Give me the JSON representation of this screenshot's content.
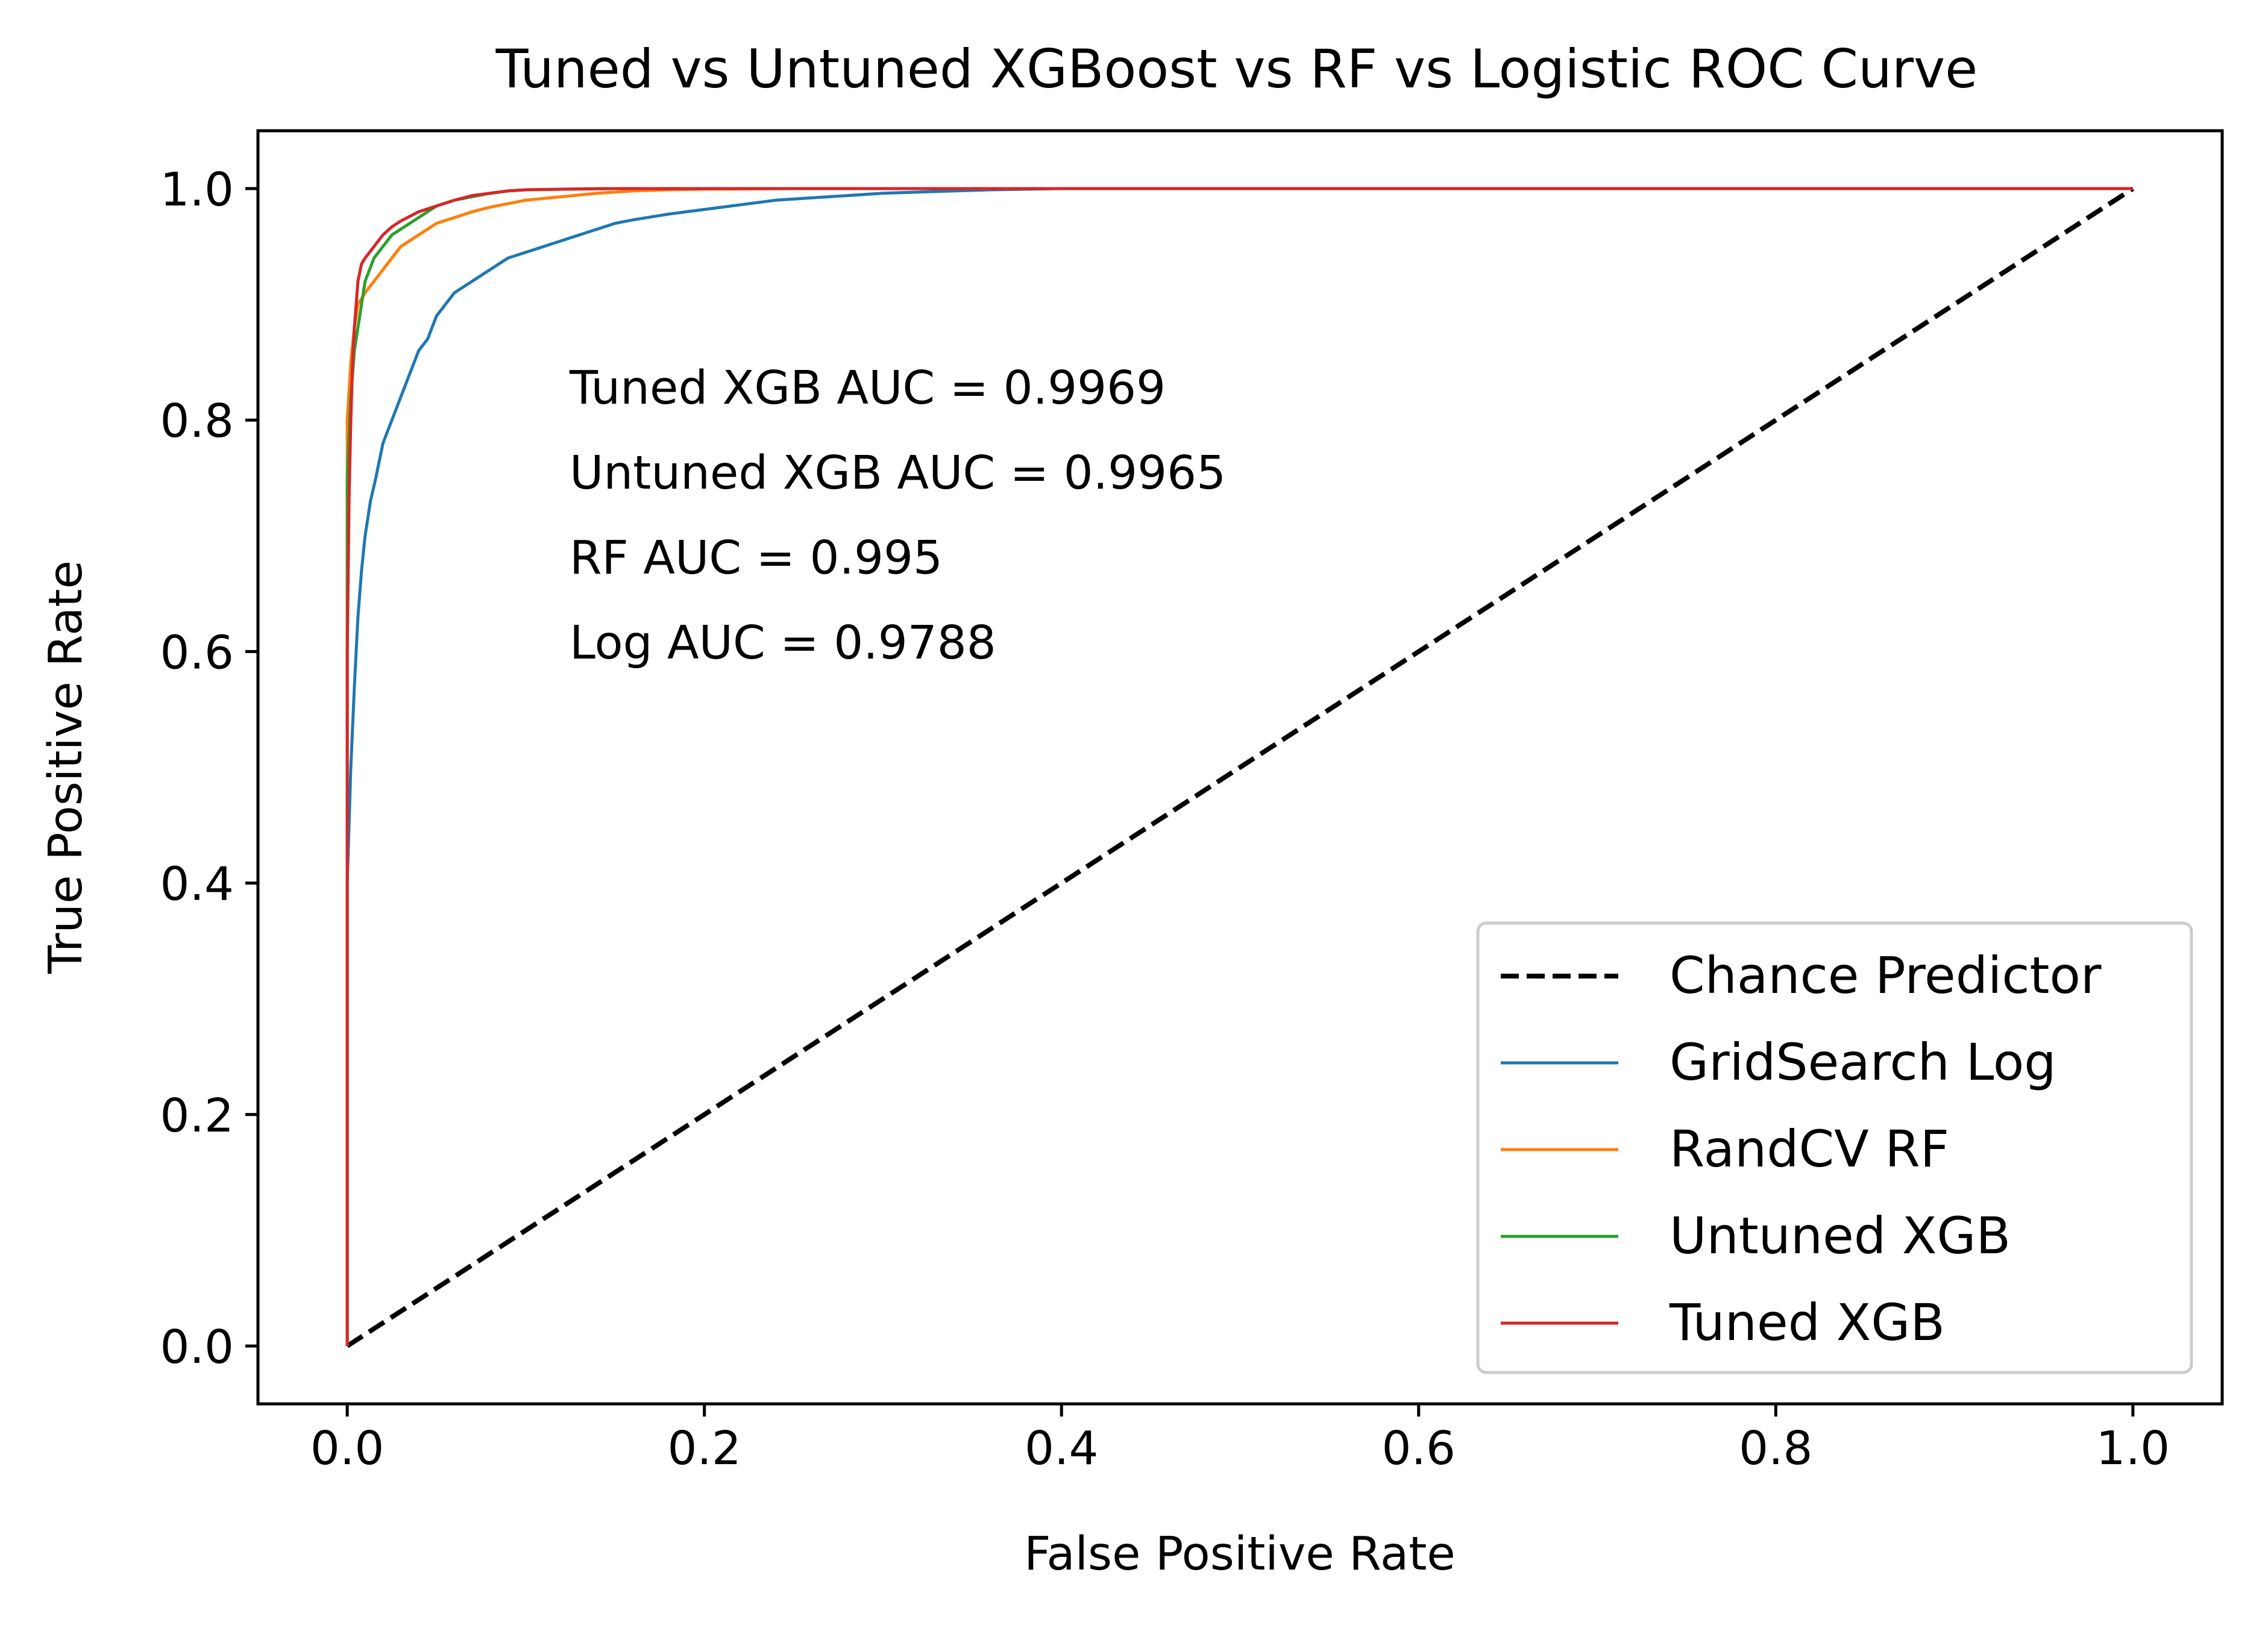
{
  "chart_data": {
    "type": "line",
    "title": "Tuned vs Untuned XGBoost vs RF vs Logistic ROC Curve",
    "xlabel": "False Positive Rate",
    "ylabel": "True Positive Rate",
    "xlim": [
      -0.05,
      1.05
    ],
    "ylim": [
      -0.05,
      1.05
    ],
    "xticks": [
      0.0,
      0.2,
      0.4,
      0.6,
      0.8,
      1.0
    ],
    "xtick_labels": [
      "0.0",
      "0.2",
      "0.4",
      "0.6",
      "0.8",
      "1.0"
    ],
    "yticks": [
      0.0,
      0.2,
      0.4,
      0.6,
      0.8,
      1.0
    ],
    "ytick_labels": [
      "0.0",
      "0.2",
      "0.4",
      "0.6",
      "0.8",
      "1.0"
    ],
    "grid": false,
    "legend_position": "lower-right",
    "annotations": [
      "Tuned XGB AUC =  0.9969",
      "Untuned XGB AUC =  0.9965",
      "RF AUC =  0.995",
      "Log AUC =  0.9788"
    ],
    "series": [
      {
        "name": "Chance Predictor",
        "color": "#000000",
        "style": "dashed",
        "x": [
          0.0,
          1.0
        ],
        "y": [
          0.0,
          1.0
        ]
      },
      {
        "name": "GridSearch Log",
        "color": "#1f77b4",
        "style": "solid",
        "x": [
          0.0,
          0.0,
          0.002,
          0.004,
          0.006,
          0.008,
          0.01,
          0.013,
          0.016,
          0.02,
          0.025,
          0.03,
          0.035,
          0.04,
          0.045,
          0.05,
          0.055,
          0.06,
          0.07,
          0.08,
          0.09,
          0.1,
          0.11,
          0.12,
          0.13,
          0.14,
          0.15,
          0.16,
          0.18,
          0.2,
          0.22,
          0.24,
          0.26,
          0.28,
          0.3,
          0.32,
          0.34,
          0.36,
          0.38,
          0.4,
          0.45,
          0.5,
          0.6,
          0.7,
          0.8,
          0.9,
          1.0
        ],
        "y": [
          0.0,
          0.4,
          0.5,
          0.57,
          0.63,
          0.67,
          0.7,
          0.73,
          0.75,
          0.78,
          0.8,
          0.82,
          0.84,
          0.86,
          0.87,
          0.89,
          0.9,
          0.91,
          0.92,
          0.93,
          0.94,
          0.945,
          0.95,
          0.955,
          0.96,
          0.965,
          0.97,
          0.973,
          0.978,
          0.982,
          0.986,
          0.99,
          0.992,
          0.994,
          0.996,
          0.997,
          0.998,
          0.999,
          0.9995,
          1.0,
          1.0,
          1.0,
          1.0,
          1.0,
          1.0,
          1.0,
          1.0
        ]
      },
      {
        "name": "RandCV RF",
        "color": "#ff7f0e",
        "style": "solid",
        "x": [
          0.0,
          0.0,
          0.002,
          0.004,
          0.006,
          0.008,
          0.01,
          0.015,
          0.02,
          0.025,
          0.03,
          0.035,
          0.04,
          0.05,
          0.06,
          0.07,
          0.08,
          0.09,
          0.1,
          0.12,
          0.14,
          0.16,
          0.18,
          0.2,
          0.25,
          0.3,
          0.4,
          0.5,
          0.6,
          0.7,
          0.8,
          0.9,
          1.0
        ],
        "y": [
          0.0,
          0.8,
          0.85,
          0.88,
          0.9,
          0.905,
          0.91,
          0.92,
          0.93,
          0.94,
          0.95,
          0.955,
          0.96,
          0.97,
          0.975,
          0.98,
          0.984,
          0.987,
          0.99,
          0.993,
          0.996,
          0.998,
          0.999,
          0.9995,
          1.0,
          1.0,
          1.0,
          1.0,
          1.0,
          1.0,
          1.0,
          1.0,
          1.0
        ]
      },
      {
        "name": "Untuned XGB",
        "color": "#2ca02c",
        "style": "solid",
        "x": [
          0.0,
          0.0,
          0.002,
          0.004,
          0.006,
          0.008,
          0.01,
          0.015,
          0.02,
          0.025,
          0.03,
          0.035,
          0.04,
          0.05,
          0.06,
          0.07,
          0.08,
          0.09,
          0.1,
          0.12,
          0.14,
          0.16,
          0.2,
          0.3,
          0.4,
          0.5,
          0.6,
          0.7,
          0.8,
          0.9,
          1.0
        ],
        "y": [
          0.0,
          0.75,
          0.82,
          0.86,
          0.88,
          0.9,
          0.92,
          0.94,
          0.95,
          0.96,
          0.965,
          0.97,
          0.975,
          0.985,
          0.99,
          0.993,
          0.996,
          0.998,
          0.999,
          0.9995,
          1.0,
          1.0,
          1.0,
          1.0,
          1.0,
          1.0,
          1.0,
          1.0,
          1.0,
          1.0,
          1.0
        ]
      },
      {
        "name": "Tuned XGB",
        "color": "#d62728",
        "style": "solid",
        "x": [
          0.0,
          0.0,
          0.001,
          0.002,
          0.003,
          0.004,
          0.006,
          0.008,
          0.01,
          0.015,
          0.02,
          0.025,
          0.03,
          0.04,
          0.05,
          0.06,
          0.07,
          0.08,
          0.09,
          0.1,
          0.12,
          0.15,
          0.2,
          0.3,
          0.4,
          0.5,
          0.6,
          0.7,
          0.8,
          0.9,
          1.0
        ],
        "y": [
          0.0,
          0.6,
          0.73,
          0.8,
          0.85,
          0.88,
          0.92,
          0.935,
          0.94,
          0.95,
          0.96,
          0.967,
          0.972,
          0.98,
          0.985,
          0.99,
          0.994,
          0.996,
          0.998,
          0.999,
          0.9995,
          1.0,
          1.0,
          1.0,
          1.0,
          1.0,
          1.0,
          1.0,
          1.0,
          1.0,
          1.0
        ]
      }
    ]
  }
}
